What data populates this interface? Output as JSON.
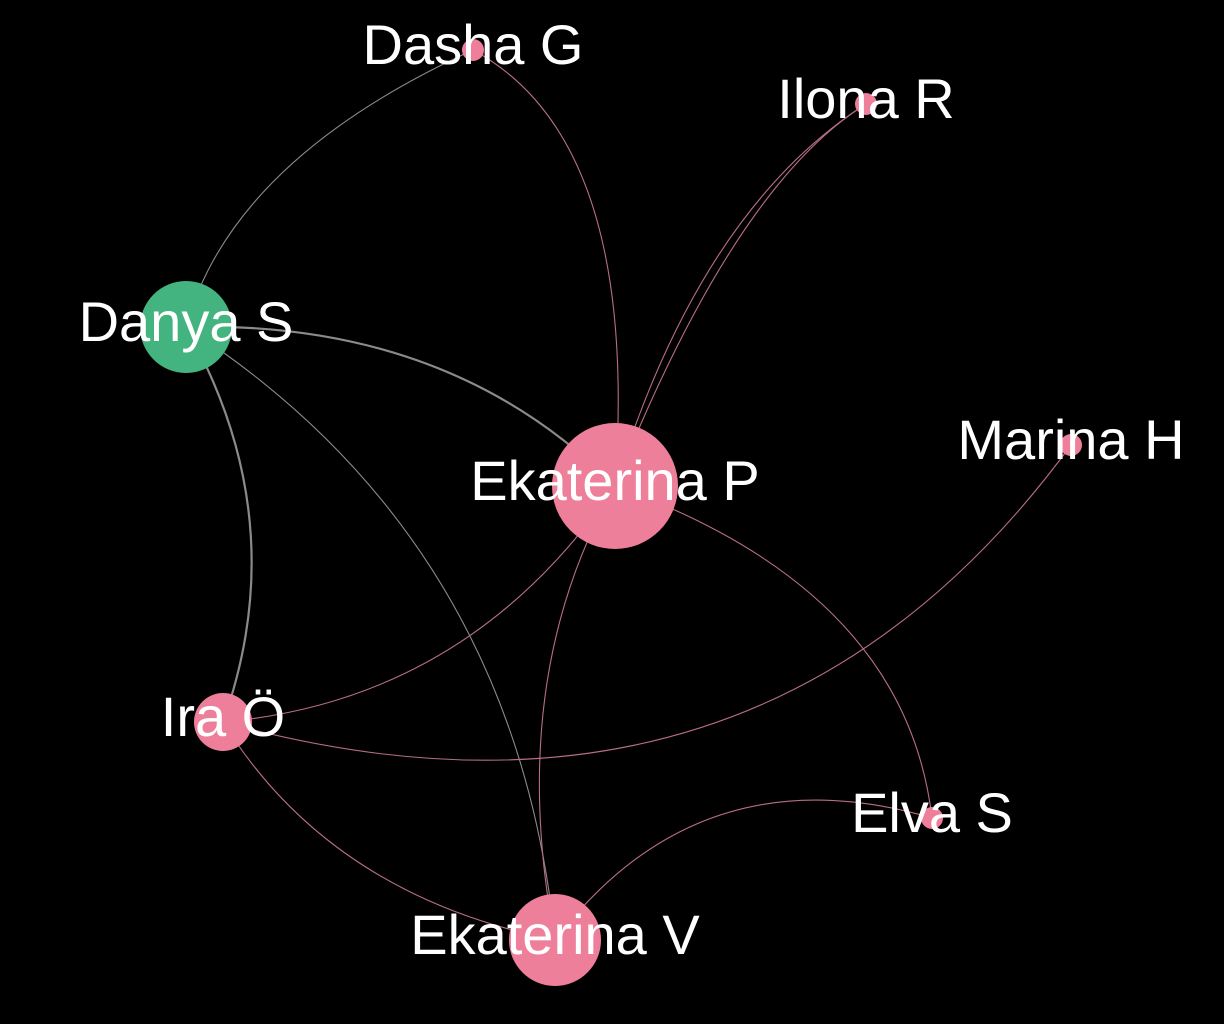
{
  "colors": {
    "background": "#000000",
    "pink_node": "#ee7f9a",
    "green_node": "#43b47f",
    "pink_edge": "#b86f83",
    "gray_edge": "#8a8a86",
    "label": "#ffffff"
  },
  "graph": {
    "nodes": [
      {
        "id": "dasha",
        "label": "Dasha G",
        "group": "pink"
      },
      {
        "id": "ilona",
        "label": "Ilona R",
        "group": "pink"
      },
      {
        "id": "danya",
        "label": "Danya S",
        "group": "green"
      },
      {
        "id": "marina",
        "label": "Marina H",
        "group": "pink"
      },
      {
        "id": "ekp",
        "label": "Ekaterina P",
        "group": "pink"
      },
      {
        "id": "ira",
        "label": "Ira Ö",
        "group": "pink"
      },
      {
        "id": "elva",
        "label": "Elva S",
        "group": "pink"
      },
      {
        "id": "ekv",
        "label": "Ekaterina V",
        "group": "pink"
      }
    ],
    "edges": [
      {
        "source": "danya",
        "target": "dasha"
      },
      {
        "source": "dasha",
        "target": "ekp"
      },
      {
        "source": "ilona",
        "target": "ekp"
      },
      {
        "source": "ilona",
        "target": "ekp"
      },
      {
        "source": "danya",
        "target": "ekp"
      },
      {
        "source": "danya",
        "target": "ira"
      },
      {
        "source": "danya",
        "target": "ekv"
      },
      {
        "source": "ekp",
        "target": "ira"
      },
      {
        "source": "ekp",
        "target": "ekv"
      },
      {
        "source": "ekp",
        "target": "elva"
      },
      {
        "source": "marina",
        "target": "ira"
      },
      {
        "source": "ira",
        "target": "ekv"
      },
      {
        "source": "elva",
        "target": "ekv"
      }
    ]
  }
}
